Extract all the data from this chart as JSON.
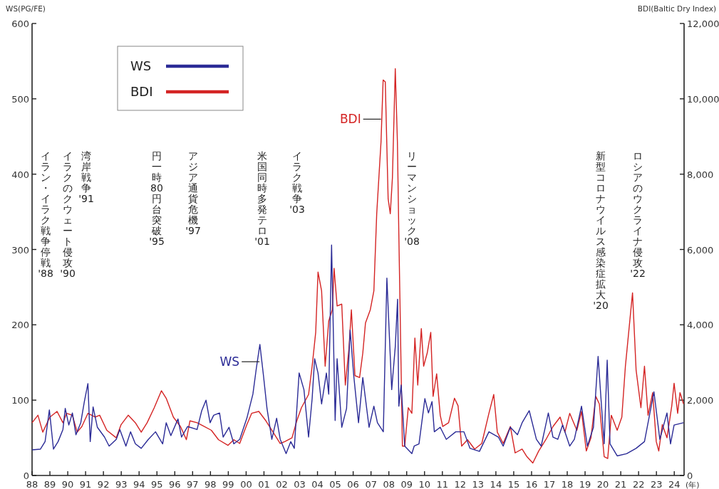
{
  "chart_data": {
    "type": "line",
    "ylabel": "WS(PG/FE)",
    "y2label": "BDI(Baltic Dry Index)",
    "xlabel": "(年)",
    "xlim": [
      1988,
      2024.55
    ],
    "xticks": [
      {
        "value": 1988,
        "label": "88"
      },
      {
        "value": 1989,
        "label": "89"
      },
      {
        "value": 1990,
        "label": "90"
      },
      {
        "value": 1991,
        "label": "91"
      },
      {
        "value": 1992,
        "label": "92"
      },
      {
        "value": 1993,
        "label": "93"
      },
      {
        "value": 1994,
        "label": "94"
      },
      {
        "value": 1995,
        "label": "95"
      },
      {
        "value": 1996,
        "label": "96"
      },
      {
        "value": 1997,
        "label": "97"
      },
      {
        "value": 1998,
        "label": "98"
      },
      {
        "value": 1999,
        "label": "99"
      },
      {
        "value": 2000,
        "label": "00"
      },
      {
        "value": 2001,
        "label": "01"
      },
      {
        "value": 2002,
        "label": "02"
      },
      {
        "value": 2003,
        "label": "03"
      },
      {
        "value": 2004,
        "label": "04"
      },
      {
        "value": 2005,
        "label": "05"
      },
      {
        "value": 2006,
        "label": "06"
      },
      {
        "value": 2007,
        "label": "07"
      },
      {
        "value": 2008,
        "label": "08"
      },
      {
        "value": 2009,
        "label": "09"
      },
      {
        "value": 2010,
        "label": "10"
      },
      {
        "value": 2011,
        "label": "11"
      },
      {
        "value": 2012,
        "label": "12"
      },
      {
        "value": 2013,
        "label": "13"
      },
      {
        "value": 2014,
        "label": "14"
      },
      {
        "value": 2015,
        "label": "15"
      },
      {
        "value": 2016,
        "label": "16"
      },
      {
        "value": 2017,
        "label": "17"
      },
      {
        "value": 2018,
        "label": "18"
      },
      {
        "value": 2019,
        "label": "19"
      },
      {
        "value": 2020,
        "label": "20"
      },
      {
        "value": 2021,
        "label": "21"
      },
      {
        "value": 2022,
        "label": "22"
      },
      {
        "value": 2023,
        "label": "23"
      },
      {
        "value": 2024,
        "label": "24"
      }
    ],
    "ylim": [
      0,
      600
    ],
    "yticks": [
      0,
      100,
      200,
      300,
      400,
      500,
      600
    ],
    "y2lim": [
      0,
      12000
    ],
    "y2ticks": [
      0,
      {
        "value": 2000,
        "label": "2,000"
      },
      {
        "value": 4000,
        "label": "4,000"
      },
      {
        "value": 6000,
        "label": "6,000"
      },
      {
        "value": 8000,
        "label": "8,000"
      },
      {
        "value": 10000,
        "label": "10,000"
      },
      {
        "value": 12000,
        "label": "12,000"
      }
    ],
    "grid": false,
    "legend": "top left",
    "line_style": "solid",
    "series": [
      {
        "name": "WS",
        "color": "#2b2b96",
        "x": [
          1988.0,
          1988.47,
          1988.73,
          1988.97,
          1989.2,
          1989.46,
          1989.73,
          1989.86,
          1990.06,
          1990.26,
          1990.46,
          1990.73,
          1990.93,
          1991.13,
          1991.26,
          1991.42,
          1991.66,
          1992.06,
          1992.32,
          1992.72,
          1992.92,
          1993.26,
          1993.52,
          1993.79,
          1994.12,
          1994.52,
          1994.92,
          1995.32,
          1995.52,
          1995.78,
          1996.18,
          1996.38,
          1996.72,
          1997.25,
          1997.51,
          1997.75,
          1997.98,
          1998.18,
          1998.51,
          1998.71,
          1999.04,
          1999.31,
          1999.64,
          2000.04,
          2000.38,
          2000.57,
          2000.77,
          2000.97,
          2001.17,
          2001.44,
          2001.71,
          2001.91,
          2002.24,
          2002.5,
          2002.7,
          2002.97,
          2003.24,
          2003.5,
          2003.7,
          2003.84,
          2004.03,
          2004.23,
          2004.5,
          2004.63,
          2004.79,
          2004.99,
          2005.1,
          2005.36,
          2005.63,
          2005.83,
          2006.03,
          2006.3,
          2006.54,
          2006.89,
          2007.16,
          2007.36,
          2007.69,
          2007.89,
          2008.16,
          2008.36,
          2008.49,
          2008.56,
          2008.69,
          2008.89,
          2009.29,
          2009.42,
          2009.69,
          2010.02,
          2010.22,
          2010.42,
          2010.55,
          2010.88,
          2011.22,
          2011.75,
          2012.21,
          2012.55,
          2013.08,
          2013.61,
          2014.14,
          2014.41,
          2014.81,
          2015.21,
          2015.47,
          2015.87,
          2016.27,
          2016.54,
          2016.94,
          2017.2,
          2017.47,
          2017.74,
          2018.14,
          2018.4,
          2018.8,
          2019.13,
          2019.47,
          2019.73,
          2019.93,
          2020.07,
          2020.24,
          2020.4,
          2020.8,
          2021.33,
          2021.86,
          2022.33,
          2022.86,
          2023.19,
          2023.59,
          2023.79,
          2023.99,
          2024.52
        ],
        "values": [
          34,
          35,
          45,
          87,
          35,
          45,
          61,
          89,
          67,
          83,
          54,
          70,
          98,
          122,
          45,
          91,
          64,
          51,
          39,
          48,
          61,
          39,
          58,
          42,
          36,
          48,
          58,
          42,
          70,
          53,
          75,
          51,
          65,
          61,
          86,
          100,
          70,
          80,
          83,
          51,
          64,
          42,
          48,
          76,
          108,
          142,
          174,
          133,
          89,
          48,
          76,
          48,
          29,
          45,
          36,
          136,
          114,
          51,
          102,
          155,
          136,
          95,
          136,
          108,
          306,
          73,
          155,
          64,
          89,
          193,
          133,
          70,
          130,
          64,
          92,
          70,
          58,
          262,
          114,
          171,
          234,
          92,
          120,
          39,
          29,
          39,
          42,
          102,
          83,
          98,
          58,
          64,
          48,
          58,
          58,
          36,
          32,
          58,
          51,
          39,
          64,
          54,
          70,
          86,
          48,
          39,
          83,
          51,
          48,
          67,
          39,
          48,
          92,
          39,
          64,
          158,
          89,
          42,
          153,
          42,
          26,
          29,
          36,
          45,
          111,
          48,
          83,
          42,
          67,
          70
        ]
      },
      {
        "name": "BDI",
        "color": "#d42424",
        "axis": "y2",
        "x": [
          1988.0,
          1988.33,
          1988.6,
          1989.0,
          1989.4,
          1989.73,
          1989.93,
          1990.26,
          1990.53,
          1990.79,
          1991.13,
          1991.53,
          1991.79,
          1992.19,
          1992.72,
          1992.99,
          1993.39,
          1993.79,
          1994.12,
          1994.45,
          1994.85,
          1995.25,
          1995.52,
          1995.92,
          1996.32,
          1996.65,
          1996.85,
          1997.25,
          1997.65,
          1998.05,
          1998.45,
          1998.98,
          1999.31,
          1999.64,
          2000.04,
          2000.31,
          2000.71,
          2001.11,
          2001.51,
          2001.91,
          2002.17,
          2002.57,
          2002.84,
          2003.1,
          2003.5,
          2003.7,
          2003.9,
          2004.03,
          2004.23,
          2004.43,
          2004.63,
          2004.83,
          2004.93,
          2005.1,
          2005.36,
          2005.56,
          2005.76,
          2005.9,
          2006.1,
          2006.36,
          2006.54,
          2006.69,
          2006.96,
          2007.16,
          2007.32,
          2007.56,
          2007.68,
          2007.8,
          2007.96,
          2008.08,
          2008.2,
          2008.36,
          2008.48,
          2008.56,
          2008.76,
          2008.89,
          2009.09,
          2009.29,
          2009.46,
          2009.62,
          2009.82,
          2009.95,
          2010.15,
          2010.35,
          2010.48,
          2010.68,
          2010.88,
          2011.02,
          2011.35,
          2011.68,
          2011.88,
          2012.08,
          2012.41,
          2012.81,
          2013.21,
          2013.61,
          2013.88,
          2014.08,
          2014.41,
          2014.81,
          2015.08,
          2015.47,
          2015.74,
          2016.07,
          2016.4,
          2016.8,
          2017.2,
          2017.6,
          2017.87,
          2018.14,
          2018.54,
          2018.8,
          2019.07,
          2019.33,
          2019.6,
          2019.8,
          2020.07,
          2020.27,
          2020.47,
          2020.8,
          2021.06,
          2021.26,
          2021.66,
          2021.86,
          2022.13,
          2022.33,
          2022.53,
          2022.79,
          2022.99,
          2023.13,
          2023.33,
          2023.59,
          2023.86,
          2023.99,
          2024.19,
          2024.32,
          2024.52
        ],
        "values": [
          1400,
          1600,
          1150,
          1550,
          1700,
          1400,
          1650,
          1600,
          1150,
          1300,
          1650,
          1550,
          1600,
          1200,
          1000,
          1350,
          1600,
          1400,
          1150,
          1400,
          1800,
          2250,
          2050,
          1550,
          1300,
          950,
          1450,
          1400,
          1300,
          1200,
          950,
          800,
          950,
          850,
          1350,
          1650,
          1700,
          1450,
          1150,
          850,
          900,
          1000,
          1450,
          1800,
          2150,
          2900,
          3800,
          5400,
          4900,
          2900,
          4100,
          4400,
          5500,
          4500,
          4550,
          2400,
          3350,
          4400,
          2650,
          2600,
          3250,
          4050,
          4400,
          4900,
          6950,
          8850,
          10500,
          10450,
          7350,
          6950,
          7900,
          10800,
          8850,
          6400,
          780,
          780,
          1800,
          1650,
          3650,
          2400,
          3900,
          2900,
          3250,
          3800,
          2100,
          2700,
          1600,
          1300,
          1400,
          2050,
          1850,
          780,
          950,
          700,
          850,
          1650,
          2150,
          1150,
          850,
          1300,
          600,
          700,
          500,
          330,
          650,
          950,
          1300,
          1550,
          1150,
          1650,
          1200,
          1700,
          650,
          1000,
          2100,
          1900,
          500,
          450,
          1600,
          1200,
          1550,
          2900,
          4850,
          2800,
          1800,
          2900,
          1600,
          2200,
          900,
          650,
          1350,
          1000,
          1850,
          2450,
          1650,
          2200,
          1900
        ]
      }
    ],
    "annotations": [
      {
        "text": "WS",
        "x": 2000.75,
        "y": 151
      },
      {
        "text": "BDI",
        "x": 2007.56,
        "y": 473
      },
      "イラン・イラク戦争停戦'88",
      "イラクのクウェート侵攻'90",
      "湾岸戦争'91",
      "円一時80円台突破'95",
      "アジア通貨危機'97",
      "米国同時多発テロ'01",
      "イラク戦争'03",
      "リーマンショック'08",
      "新型コロナウイルス感染症拡大'20",
      "ロシアのウクライナ侵攻'22"
    ]
  }
}
